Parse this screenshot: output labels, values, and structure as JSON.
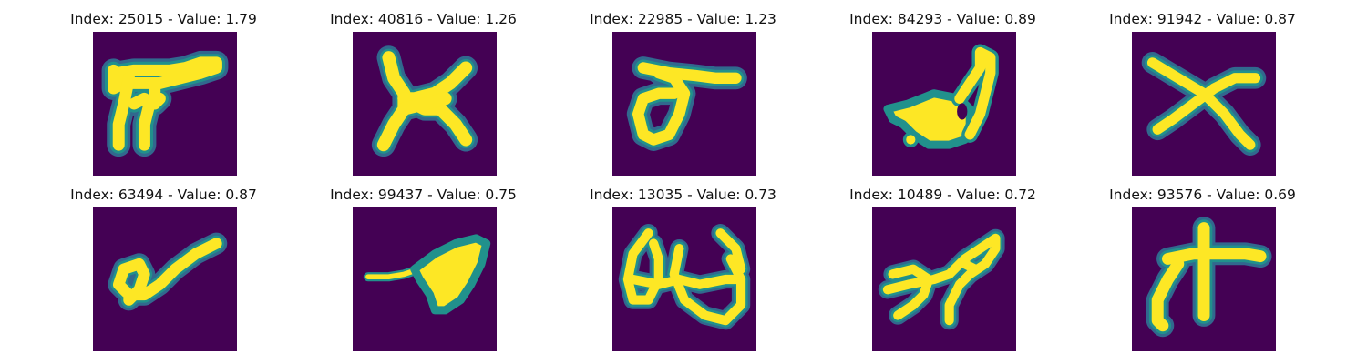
{
  "colors": {
    "background": "#440154",
    "stroke": "#FDE725",
    "edge_mid": "#21918C",
    "edge_outer": "#31688E"
  },
  "panels": [
    {
      "title": "Index: 25015 - Value: 1.79",
      "glyph": "glyph-25015"
    },
    {
      "title": "Index: 40816 - Value: 1.26",
      "glyph": "glyph-40816"
    },
    {
      "title": "Index: 22985 - Value: 1.23",
      "glyph": "glyph-22985"
    },
    {
      "title": "Index: 84293 - Value: 0.89",
      "glyph": "glyph-84293"
    },
    {
      "title": "Index: 91942 - Value: 0.87",
      "glyph": "glyph-91942"
    },
    {
      "title": "Index: 63494 - Value: 0.87",
      "glyph": "glyph-63494"
    },
    {
      "title": "Index: 99437 - Value: 0.75",
      "glyph": "glyph-99437"
    },
    {
      "title": "Index: 13035 - Value: 0.73",
      "glyph": "glyph-13035"
    },
    {
      "title": "Index: 10489 - Value: 0.72",
      "glyph": "glyph-10489"
    },
    {
      "title": "Index: 93576 - Value: 0.69",
      "glyph": "glyph-93576"
    }
  ]
}
